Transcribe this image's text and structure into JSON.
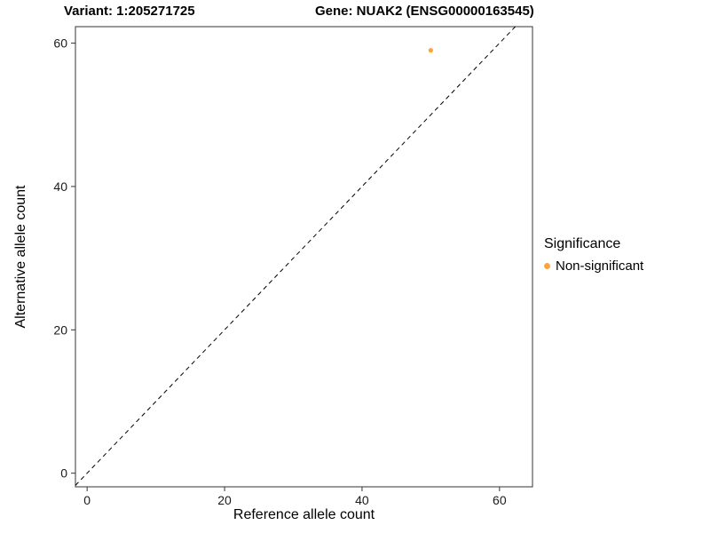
{
  "chart_data": {
    "type": "scatter",
    "title_left": "Variant: 1:205271725",
    "title_right": "Gene: NUAK2 (ENSG00000163545)",
    "xlabel": "Reference allele count",
    "ylabel": "Alternative allele count",
    "xlim": [
      -1.7,
      64.8
    ],
    "ylim": [
      -1.9,
      62.3
    ],
    "x_ticks": [
      0,
      20,
      40,
      60
    ],
    "y_ticks": [
      0,
      20,
      40,
      60
    ],
    "grid": "off",
    "panel_border_color": "#333333",
    "reference_line": {
      "kind": "identity",
      "style": "dashed",
      "color": "#000000"
    },
    "series": [
      {
        "name": "Non-significant",
        "color": "#FFA33E",
        "points": [
          {
            "x": 50,
            "y": 59
          }
        ]
      }
    ],
    "legend": {
      "position": "right",
      "title": "Significance",
      "entries": [
        {
          "label": "Non-significant",
          "color": "#FFA33E"
        }
      ]
    }
  }
}
